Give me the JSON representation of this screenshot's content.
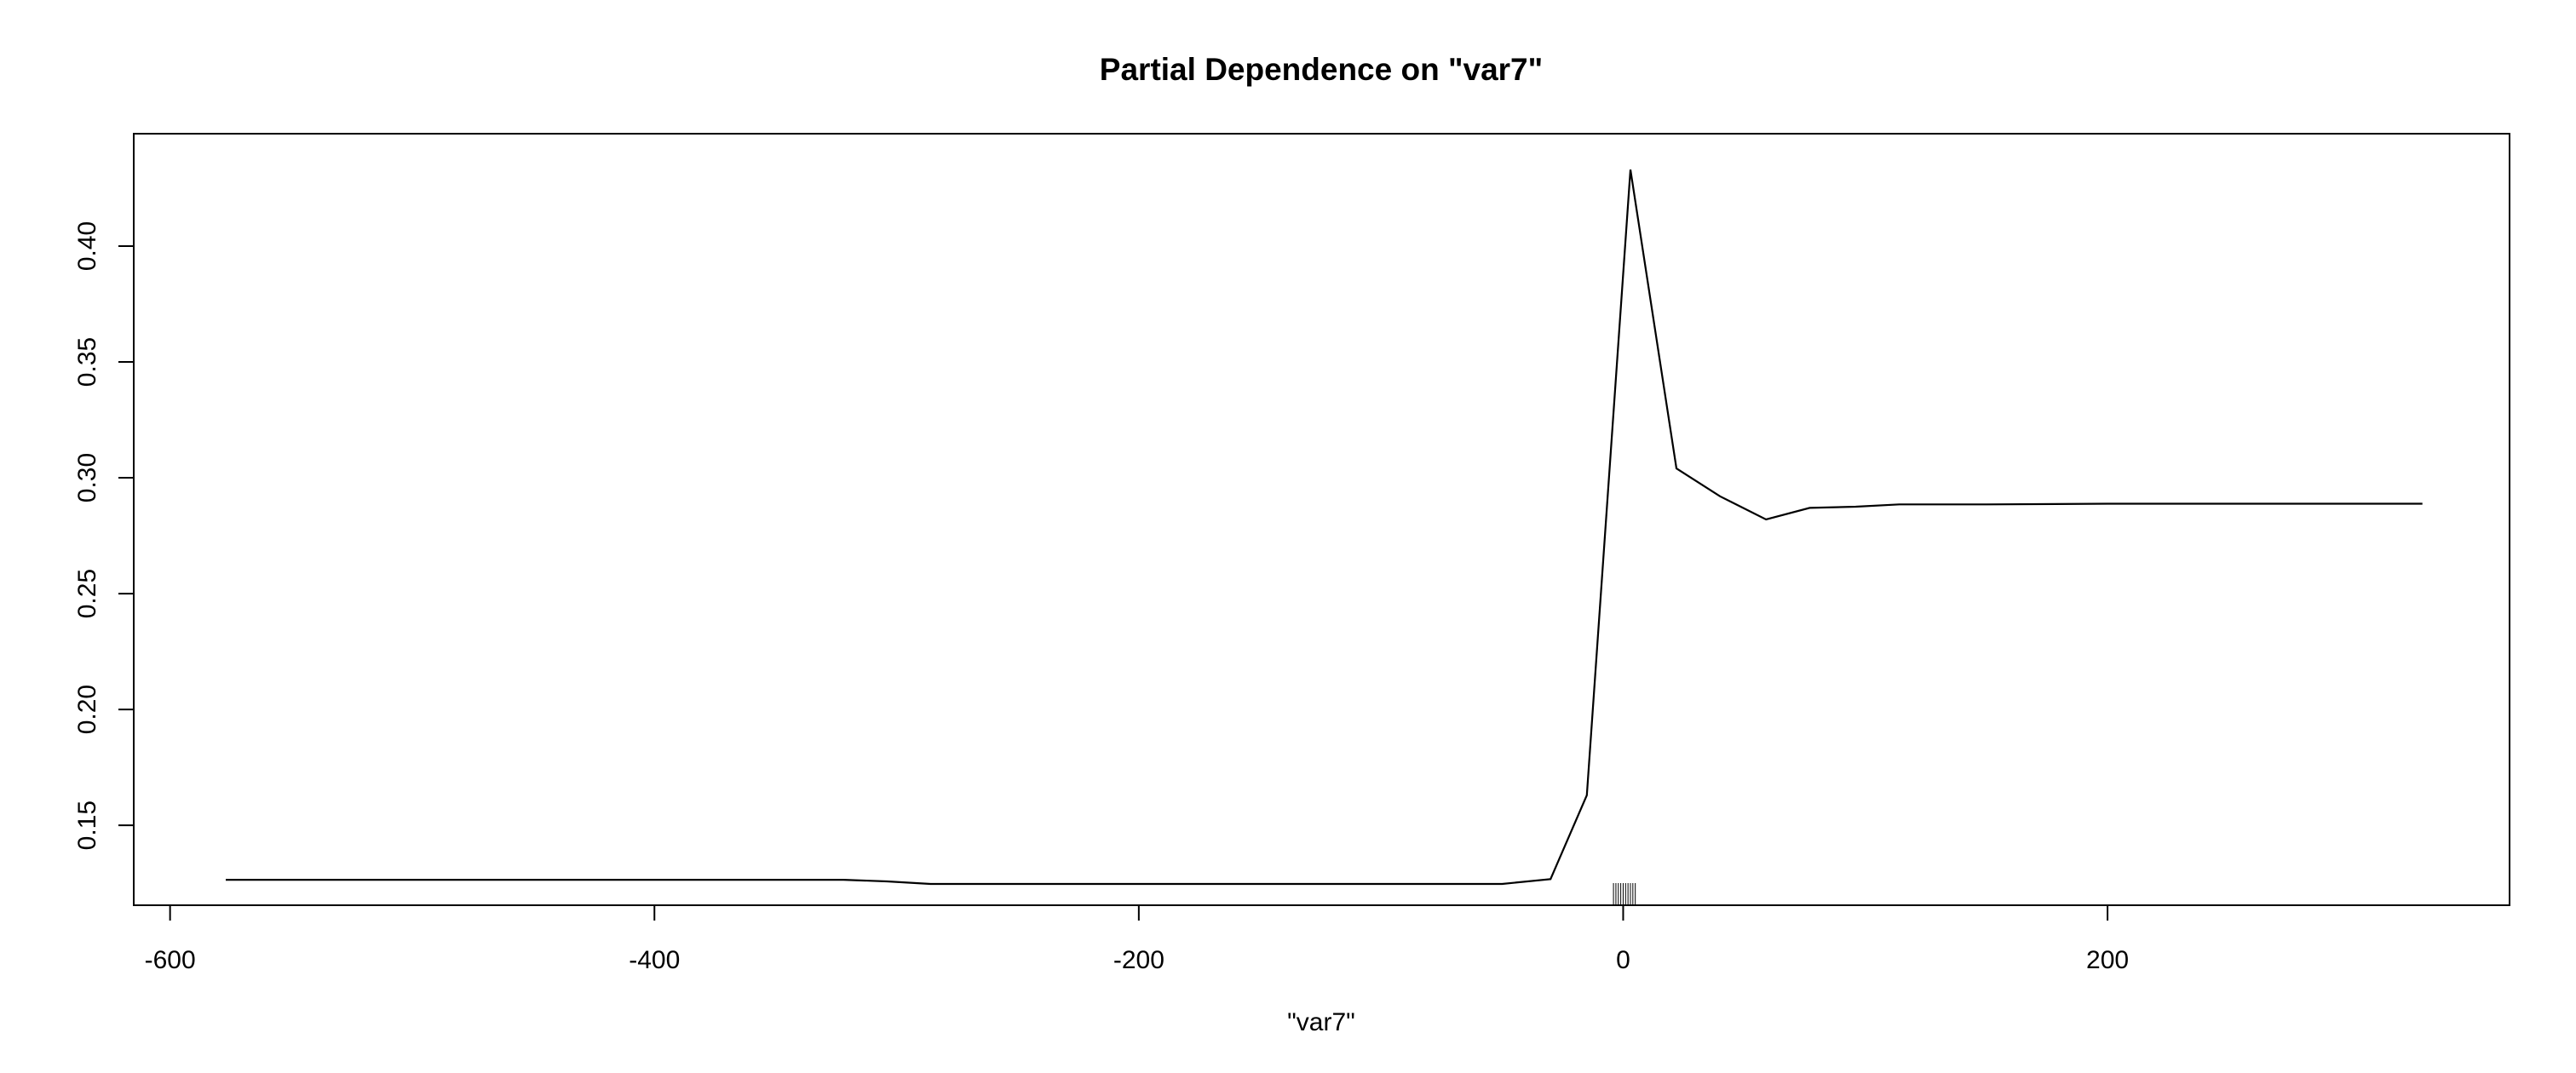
{
  "chart_data": {
    "type": "line",
    "title": "Partial Dependence on \"var7\"",
    "xlabel": "\"var7\"",
    "ylabel": "",
    "xlim": [
      -615,
      366
    ],
    "ylim": [
      0.1155,
      0.4485
    ],
    "x_ticks": [
      -600,
      -400,
      -200,
      0,
      200
    ],
    "x_tick_labels": [
      "-600",
      "-400",
      "-200",
      "0",
      "200"
    ],
    "y_ticks": [
      0.15,
      0.2,
      0.25,
      0.3,
      0.35,
      0.4
    ],
    "y_tick_labels": [
      "0.15",
      "0.20",
      "0.25",
      "0.30",
      "0.35",
      "0.40"
    ],
    "grid": false,
    "legend": "none",
    "series": [
      {
        "x": [
          -577,
          -515,
          -450,
          -400,
          -350,
          -322,
          -304,
          -286,
          -250,
          -200,
          -150,
          -100,
          -50,
          -30,
          -15,
          3,
          22,
          40,
          59,
          77,
          96,
          114,
          150,
          200,
          250,
          300,
          330
        ],
        "y": [
          0.1265,
          0.1265,
          0.1265,
          0.1265,
          0.1265,
          0.1265,
          0.1258,
          0.1247,
          0.1247,
          0.1247,
          0.1247,
          0.1247,
          0.1247,
          0.1268,
          0.163,
          0.433,
          0.304,
          0.292,
          0.282,
          0.287,
          0.2875,
          0.2885,
          0.2885,
          0.2888,
          0.2888,
          0.2888,
          0.2888
        ]
      }
    ],
    "rug_x": [
      -4,
      -3,
      -2,
      -1,
      0,
      1,
      2,
      3,
      4,
      5
    ]
  }
}
